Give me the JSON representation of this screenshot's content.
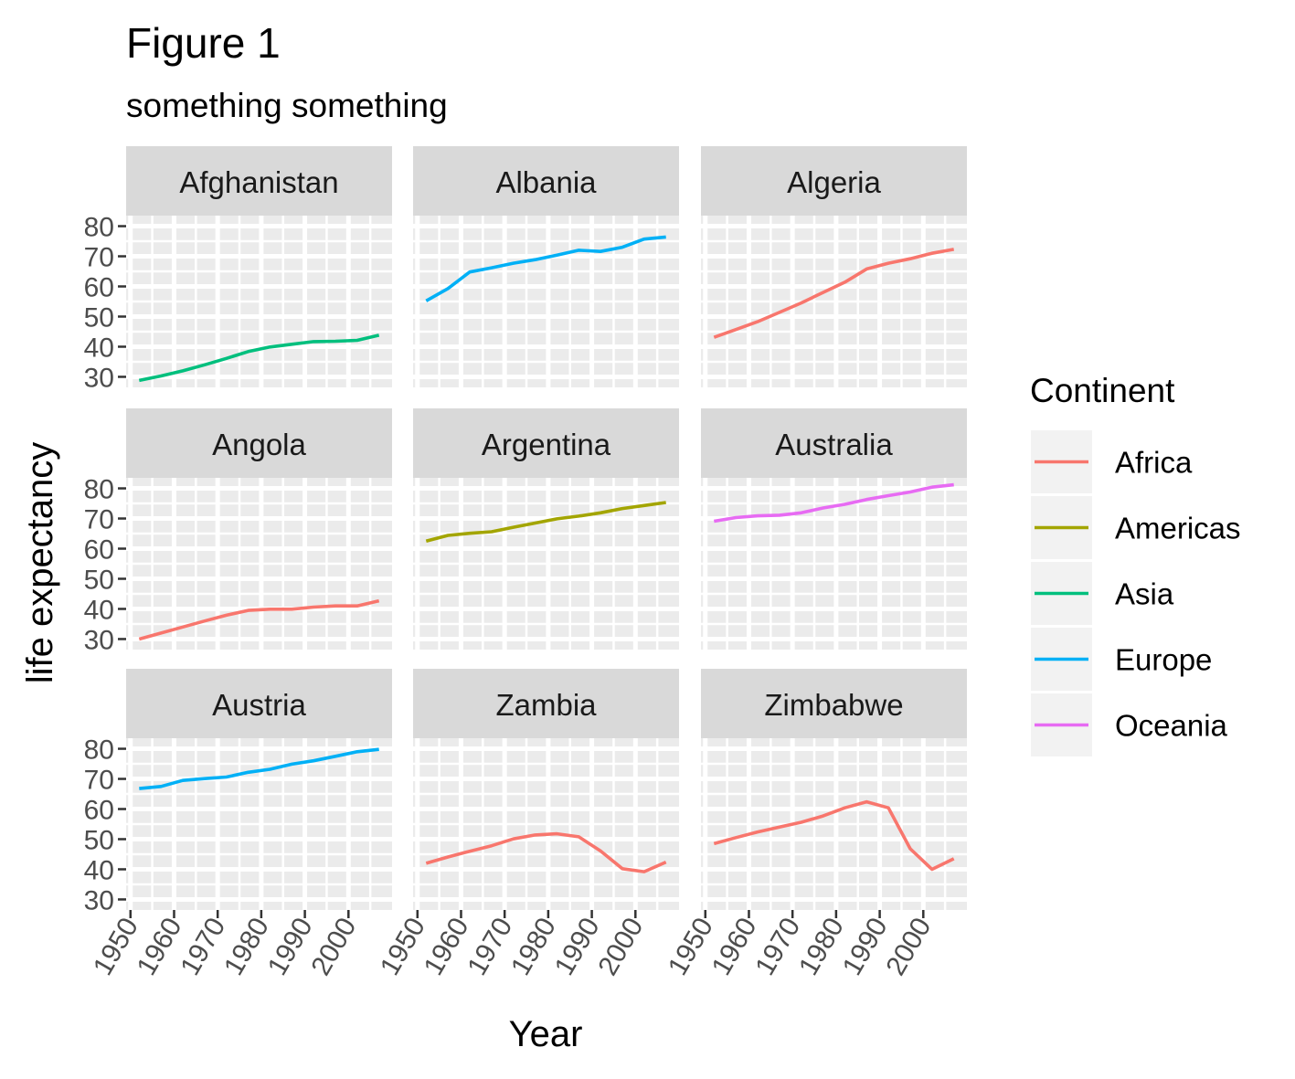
{
  "chart_data": {
    "type": "line",
    "title": "Figure 1",
    "subtitle": "something something",
    "xlabel": "Year",
    "ylabel": "life expectancy",
    "xlim": [
      1949,
      2010
    ],
    "ylim": [
      26.5,
      83.5
    ],
    "x_ticks": [
      1950,
      1960,
      1970,
      1980,
      1990,
      2000
    ],
    "y_ticks": [
      30,
      40,
      50,
      60,
      70,
      80
    ],
    "x_tick_labels": [
      "1950",
      "1960",
      "1970",
      "1980",
      "1990",
      "2000"
    ],
    "y_tick_labels": [
      "30",
      "40",
      "50",
      "60",
      "70",
      "80"
    ],
    "grid": true,
    "legend": {
      "title": "Continent",
      "placement": "right",
      "entries": [
        {
          "name": "Africa",
          "color": "#F8766D"
        },
        {
          "name": "Americas",
          "color": "#A3A500"
        },
        {
          "name": "Asia",
          "color": "#00BF7D"
        },
        {
          "name": "Europe",
          "color": "#00B0F6"
        },
        {
          "name": "Oceania",
          "color": "#E76BF3"
        }
      ]
    },
    "x": [
      1952,
      1957,
      1962,
      1967,
      1972,
      1977,
      1982,
      1987,
      1992,
      1997,
      2002,
      2007
    ],
    "series": [
      {
        "name": "Afghanistan",
        "continent": "Asia",
        "values": [
          28.8,
          30.3,
          32.0,
          34.0,
          36.1,
          38.4,
          39.9,
          40.8,
          41.7,
          41.8,
          42.1,
          43.8
        ]
      },
      {
        "name": "Albania",
        "continent": "Europe",
        "values": [
          55.2,
          59.3,
          64.8,
          66.2,
          67.7,
          68.9,
          70.4,
          72.0,
          71.6,
          73.0,
          75.7,
          76.4
        ]
      },
      {
        "name": "Algeria",
        "continent": "Africa",
        "values": [
          43.1,
          45.7,
          48.3,
          51.4,
          54.5,
          58.0,
          61.4,
          65.8,
          67.7,
          69.2,
          71.0,
          72.3
        ]
      },
      {
        "name": "Angola",
        "continent": "Africa",
        "values": [
          30.0,
          32.0,
          34.0,
          36.0,
          37.9,
          39.5,
          39.9,
          39.9,
          40.6,
          41.0,
          41.0,
          42.7
        ]
      },
      {
        "name": "Argentina",
        "continent": "Americas",
        "values": [
          62.5,
          64.4,
          65.1,
          65.6,
          67.1,
          68.5,
          69.9,
          70.8,
          71.9,
          73.3,
          74.3,
          75.3
        ]
      },
      {
        "name": "Australia",
        "continent": "Oceania",
        "values": [
          69.1,
          70.3,
          70.9,
          71.1,
          71.9,
          73.5,
          74.7,
          76.3,
          77.6,
          78.8,
          80.4,
          81.2
        ]
      },
      {
        "name": "Austria",
        "continent": "Europe",
        "values": [
          66.8,
          67.5,
          69.5,
          70.1,
          70.6,
          72.2,
          73.2,
          74.9,
          76.0,
          77.5,
          79.0,
          79.8
        ]
      },
      {
        "name": "Zambia",
        "continent": "Africa",
        "values": [
          42.0,
          44.1,
          46.0,
          47.8,
          50.1,
          51.4,
          51.8,
          50.8,
          46.1,
          40.2,
          39.2,
          42.4
        ]
      },
      {
        "name": "Zimbabwe",
        "continent": "Africa",
        "values": [
          48.5,
          50.5,
          52.4,
          54.0,
          55.6,
          57.7,
          60.4,
          62.4,
          60.4,
          46.8,
          40.0,
          43.5
        ]
      }
    ]
  }
}
